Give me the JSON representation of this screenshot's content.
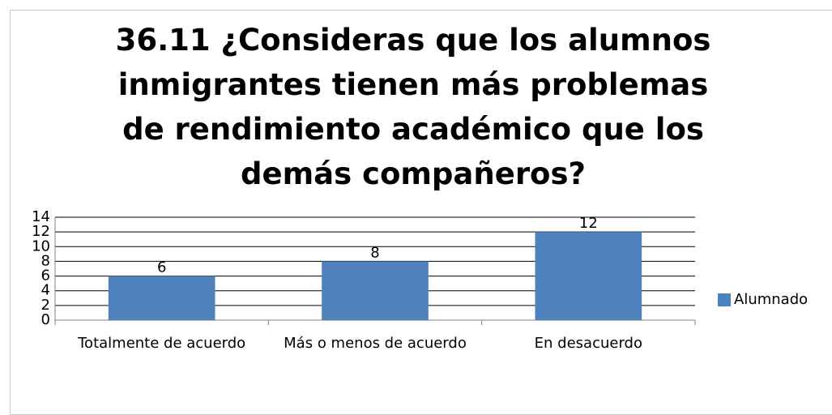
{
  "chart_data": {
    "type": "bar",
    "title": "36.11 ¿Consideras que los alumnos inmigrantes tienen más problemas de rendimiento académico que los demás compañeros?",
    "categories": [
      "Totalmente de acuerdo",
      "Más o menos de acuerdo",
      "En desacuerdo"
    ],
    "series": [
      {
        "name": "Alumnado",
        "color": "#4f81bd",
        "values": [
          6,
          8,
          12
        ]
      }
    ],
    "ylim": [
      0,
      14
    ],
    "yticks": [
      0,
      2,
      4,
      6,
      8,
      10,
      12,
      14
    ],
    "grid": true,
    "legend": "right"
  }
}
